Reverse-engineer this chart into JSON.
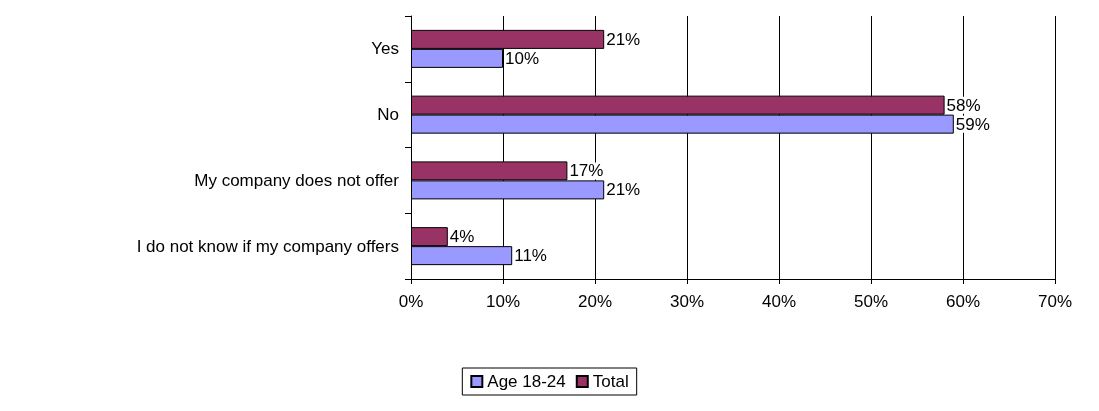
{
  "chart_data": {
    "type": "bar",
    "orientation": "horizontal",
    "categories": [
      "Yes",
      "No",
      "My company does not offer",
      "I do not know if my company offers"
    ],
    "series": [
      {
        "name": "Age 18-24",
        "color": "#9999ff",
        "values": [
          10,
          59,
          21,
          11
        ],
        "value_labels": [
          "10%",
          "59%",
          "21%",
          "11%"
        ]
      },
      {
        "name": "Total",
        "color": "#993366",
        "values": [
          21,
          58,
          17,
          4
        ],
        "value_labels": [
          "21%",
          "58%",
          "17%",
          "4%"
        ]
      }
    ],
    "xlim": [
      0,
      70
    ],
    "xticks": [
      {
        "value": 0,
        "label": "0%"
      },
      {
        "value": 10,
        "label": "10%"
      },
      {
        "value": 20,
        "label": "20%"
      },
      {
        "value": 30,
        "label": "30%"
      },
      {
        "value": 40,
        "label": "40%"
      },
      {
        "value": 50,
        "label": "50%"
      },
      {
        "value": 60,
        "label": "60%"
      },
      {
        "value": 70,
        "label": "70%"
      }
    ],
    "grid": "x",
    "legend": "bottom"
  }
}
